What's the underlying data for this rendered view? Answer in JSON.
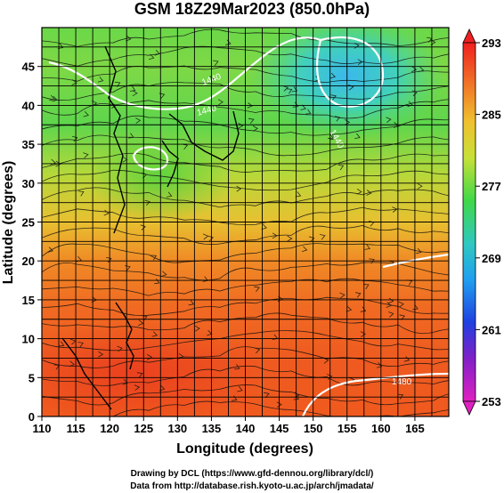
{
  "title": "GSM 18Z29Mar2023 (850.0hPa)",
  "x_axis": {
    "label": "Longitude (degrees)",
    "ticks": [
      "110",
      "115",
      "120",
      "125",
      "130",
      "135",
      "140",
      "145",
      "150",
      "155",
      "160",
      "165"
    ],
    "range": [
      110,
      170
    ]
  },
  "y_axis": {
    "label": "Latitude (degrees)",
    "ticks": [
      "0",
      "5",
      "10",
      "15",
      "20",
      "25",
      "30",
      "35",
      "40",
      "45"
    ],
    "range": [
      0,
      50
    ]
  },
  "colorbar": {
    "ticks": [
      "293",
      "285",
      "277",
      "269",
      "261",
      "253"
    ],
    "range": [
      253,
      293
    ]
  },
  "contour_labels": [
    "1440",
    "1440",
    "1440",
    "1480"
  ],
  "credits": {
    "line1": "Drawing by DCL (https://www.gfd-dennou.org/library/dcl/)",
    "line2": "Data from http://database.rish.kyoto-u.ac.jp/arch/jmadata/"
  }
}
